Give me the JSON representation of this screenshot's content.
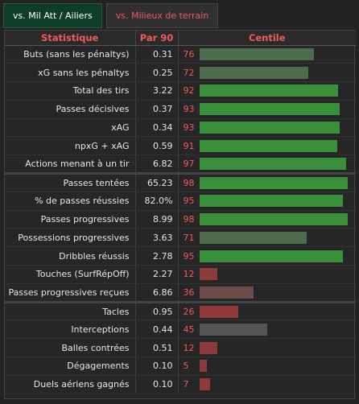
{
  "tabs": [
    {
      "label": "vs. Mil Att / Ailiers"
    },
    {
      "label": "vs. Milieux de terrain"
    }
  ],
  "table": {
    "headers": [
      "Statistique",
      "Par 90",
      "Centile"
    ],
    "colors": {
      "high": "#3a8f3a",
      "mid_high": "#4d6b4d",
      "mid": "#555555",
      "mid_low": "#6b4b4b",
      "low": "#8f3a3a"
    },
    "groups": [
      {
        "rows": [
          {
            "stat": "Buts (sans les pénaltys)",
            "value": "0.31",
            "pct": "76",
            "fill": 0.76,
            "tone": "mid_high"
          },
          {
            "stat": "xG sans les pénaltys",
            "value": "0.25",
            "pct": "72",
            "fill": 0.72,
            "tone": "mid_high"
          },
          {
            "stat": "Total des tirs",
            "value": "3.22",
            "pct": "92",
            "fill": 0.92,
            "tone": "high"
          },
          {
            "stat": "Passes décisives",
            "value": "0.37",
            "pct": "93",
            "fill": 0.93,
            "tone": "high"
          },
          {
            "stat": "xAG",
            "value": "0.34",
            "pct": "93",
            "fill": 0.93,
            "tone": "high"
          },
          {
            "stat": "npxG + xAG",
            "value": "0.59",
            "pct": "91",
            "fill": 0.91,
            "tone": "high"
          },
          {
            "stat": "Actions menant à un tir",
            "value": "6.82",
            "pct": "97",
            "fill": 0.97,
            "tone": "high"
          }
        ]
      },
      {
        "rows": [
          {
            "stat": "Passes tentées",
            "value": "65.23",
            "pct": "98",
            "fill": 0.98,
            "tone": "high"
          },
          {
            "stat": "% de passes réussies",
            "value": "82.0%",
            "pct": "95",
            "fill": 0.95,
            "tone": "high"
          },
          {
            "stat": "Passes progressives",
            "value": "8.99",
            "pct": "98",
            "fill": 0.98,
            "tone": "high"
          },
          {
            "stat": "Possessions progressives",
            "value": "3.63",
            "pct": "71",
            "fill": 0.71,
            "tone": "mid_high"
          },
          {
            "stat": "Dribbles réussis",
            "value": "2.78",
            "pct": "95",
            "fill": 0.95,
            "tone": "high"
          },
          {
            "stat": "Touches (SurfRépOff)",
            "value": "2.27",
            "pct": "12",
            "fill": 0.12,
            "tone": "low"
          },
          {
            "stat": "Passes progressives reçues",
            "value": "6.86",
            "pct": "36",
            "fill": 0.36,
            "tone": "mid_low"
          }
        ]
      },
      {
        "rows": [
          {
            "stat": "Tacles",
            "value": "0.95",
            "pct": "26",
            "fill": 0.26,
            "tone": "low"
          },
          {
            "stat": "Interceptions",
            "value": "0.44",
            "pct": "45",
            "fill": 0.45,
            "tone": "mid"
          },
          {
            "stat": "Balles contrées",
            "value": "0.51",
            "pct": "12",
            "fill": 0.12,
            "tone": "low"
          },
          {
            "stat": "Dégagements",
            "value": "0.10",
            "pct": "5",
            "fill": 0.05,
            "tone": "low"
          },
          {
            "stat": "Duels aériens gagnés",
            "value": "0.10",
            "pct": "7",
            "fill": 0.07,
            "tone": "low"
          }
        ]
      }
    ]
  }
}
